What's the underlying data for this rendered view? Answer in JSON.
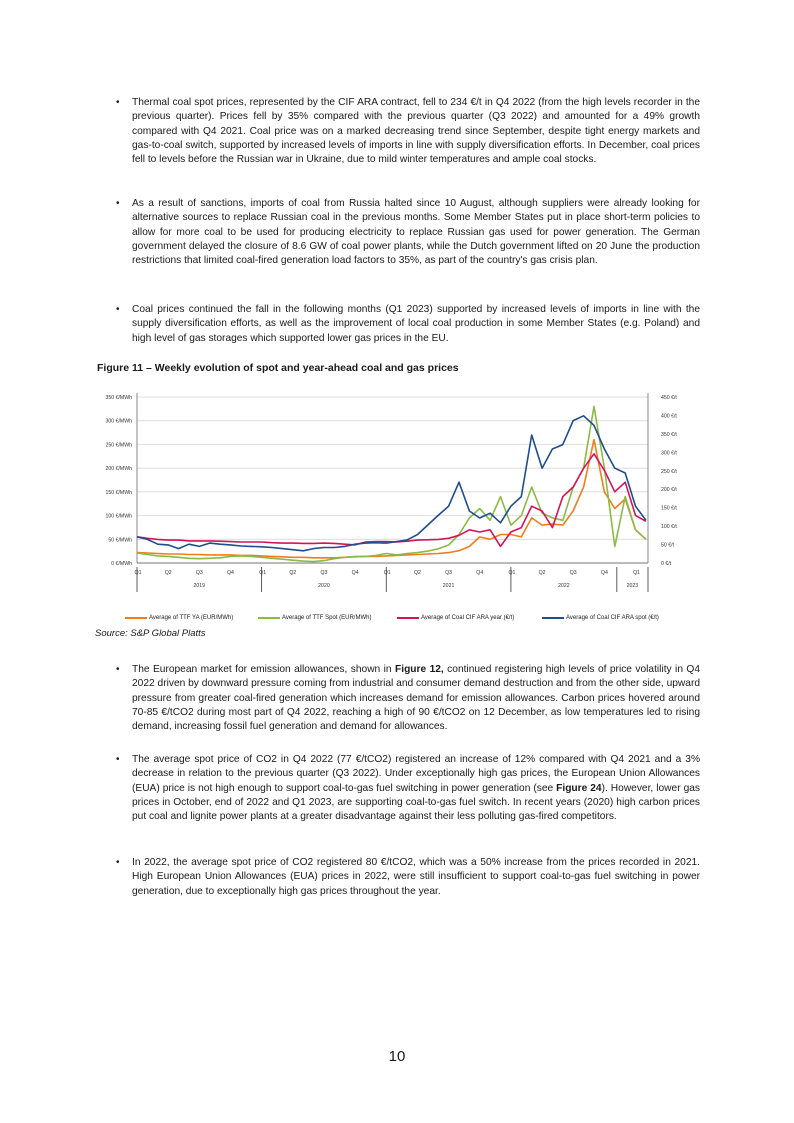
{
  "paragraphs": [
    {
      "text": "Thermal coal spot prices, represented by the CIF ARA contract, fell to 234 €/t in Q4 2022 (from the high levels recorder in the previous quarter). Prices fell by 35% compared with the previous quarter (Q3 2022) and amounted for a 49% growth compared with Q4 2021. Coal price was on a marked decreasing trend since September, despite tight energy markets and gas-to-coal switch, supported by increased levels of imports in line with supply diversification efforts. In December, coal prices fell to levels before the Russian war in Ukraine, due to mild winter temperatures and ample coal stocks."
    },
    {
      "text": "As a result of sanctions, imports of coal from Russia halted since 10 August, although suppliers were already looking for alternative sources to replace Russian coal in the previous months. Some Member States put in place short-term policies to allow for more coal to be used for producing electricity to replace Russian gas used for power generation. The German government delayed the closure of 8.6 GW of coal power plants, while the Dutch government lifted on 20 June the production restrictions that limited coal-fired generation load factors to 35%, as part of the country's gas crisis plan."
    },
    {
      "text": "Coal prices continued the fall in the following months (Q1 2023) supported by increased levels of imports in line with the supply diversification efforts, as well as the improvement of local coal production in some Member States (e.g. Poland) and high level of gas storages which supported lower gas prices in the EU."
    }
  ],
  "figure_title": "Figure 11 – Weekly evolution of spot and year-ahead coal and gas prices",
  "source": "Source: S&P Global Platts",
  "paragraphs2": [
    {
      "pre": "The European market for emission allowances, shown in ",
      "bold": "Figure 12,",
      "post": " continued registering high levels of price volatility in Q4 2022 driven by downward pressure coming from industrial and consumer demand destruction and from the other side, upward pressure from greater coal-fired generation which increases demand for emission allowances. Carbon prices hovered around 70-85 €/tCO2 during most part of Q4 2022, reaching a high of 90 €/tCO2 on 12 December, as low temperatures led to rising demand, increasing fossil fuel generation and demand for allowances."
    },
    {
      "pre": "The average spot price of CO2 in Q4 2022 (77 €/tCO2) registered an increase of 12% compared with Q4 2021 and a 3% decrease in relation to the previous quarter (Q3 2022). Under exceptionally high gas prices, the European Union Allowances (EUA) price is not high enough to support coal-to-gas fuel switching in power generation (see ",
      "bold": "Figure 24",
      "post": "). However, lower gas prices in October, end of 2022 and Q1 2023, are supporting coal-to-gas fuel switch. In recent years (2020) high carbon prices put coal and lignite power plants at a greater disadvantage against their less polluting gas-fired competitors."
    },
    {
      "pre": "In 2022, the average spot price of CO2 registered 80 €/tCO2, which was a 50% increase from the prices recorded in 2021.  High European Union Allowances (EUA) prices in 2022, were still insufficient to support coal-to-gas fuel switching in power generation, due to exceptionally high gas prices throughout the year.",
      "bold": "",
      "post": ""
    }
  ],
  "page_number": "10",
  "chart_data": {
    "type": "line",
    "title": "Figure 11 – Weekly evolution of spot and year-ahead coal and gas prices",
    "x_start": "2019-01",
    "x_step": "month (approx., read from weekly chart)",
    "left_axis": {
      "unit": "€/MWh",
      "ylim": [
        0,
        350
      ],
      "ticks": [
        "0 €/MWh",
        "50 €/MWh",
        "100 €/MWh",
        "150 €/MWh",
        "200 €/MWh",
        "250 €/MWh",
        "300 €/MWh",
        "350 €/MWh"
      ]
    },
    "right_axis": {
      "unit": "€/t",
      "ylim": [
        0,
        450
      ],
      "ticks": [
        "0 €/t",
        "50 €/t",
        "100 €/t",
        "150 €/t",
        "200 €/t",
        "250 €/t",
        "300 €/t",
        "350 €/t",
        "400 €/t",
        "450 €/t"
      ]
    },
    "quarters": [
      "Q1",
      "Q2",
      "Q3",
      "Q4",
      "Q1",
      "Q2",
      "Q3",
      "Q4",
      "Q1",
      "Q2",
      "Q3",
      "Q4",
      "Q1",
      "Q2",
      "Q3",
      "Q4",
      "Q1"
    ],
    "years": [
      "2019",
      "2020",
      "2021",
      "2022",
      "2023"
    ],
    "grid": true,
    "legend_position": "bottom",
    "series": [
      {
        "name": "Average of TTF YA (EUR/MWh)",
        "axis": "left",
        "color": "#f07d1a",
        "values": [
          22,
          21,
          20,
          19,
          19,
          18,
          18,
          17,
          17,
          17,
          16,
          16,
          15,
          14,
          13,
          12,
          12,
          11,
          11,
          11,
          12,
          13,
          14,
          14,
          15,
          16,
          17,
          18,
          19,
          20,
          22,
          26,
          35,
          55,
          50,
          60,
          60,
          55,
          95,
          80,
          82,
          80,
          110,
          160,
          260,
          150,
          115,
          135,
          70,
          50
        ]
      },
      {
        "name": "Average of TTF Spot (EUR/MWh)",
        "axis": "left",
        "color": "#8cbb45",
        "values": [
          21,
          18,
          15,
          14,
          12,
          10,
          9,
          10,
          11,
          14,
          15,
          14,
          12,
          10,
          8,
          6,
          4,
          3,
          5,
          9,
          12,
          14,
          14,
          16,
          20,
          17,
          20,
          22,
          25,
          30,
          38,
          60,
          95,
          115,
          90,
          140,
          80,
          100,
          160,
          105,
          95,
          90,
          160,
          200,
          330,
          200,
          35,
          140,
          70,
          50
        ]
      },
      {
        "name": "Average of Coal CIF ARA year (€/t)",
        "axis": "right",
        "color": "#d4145a",
        "values": [
          71,
          67,
          64,
          62,
          62,
          60,
          60,
          60,
          59,
          58,
          57,
          57,
          57,
          55,
          54,
          54,
          53,
          53,
          54,
          53,
          51,
          49,
          57,
          58,
          58,
          57,
          59,
          62,
          63,
          64,
          67,
          75,
          90,
          84,
          90,
          45,
          84,
          96,
          154,
          141,
          96,
          180,
          206,
          257,
          296,
          251,
          193,
          219,
          129,
          113
        ]
      },
      {
        "name": "Average of Coal CIF ARA spot (€/t)",
        "axis": "right",
        "color": "#1f4e8c",
        "values": [
          71,
          64,
          51,
          49,
          39,
          51,
          45,
          54,
          51,
          49,
          46,
          45,
          44,
          42,
          39,
          36,
          33,
          39,
          42,
          42,
          45,
          51,
          54,
          55,
          54,
          58,
          62,
          77,
          103,
          129,
          154,
          219,
          141,
          122,
          135,
          109,
          154,
          180,
          347,
          257,
          309,
          321,
          386,
          399,
          373,
          309,
          257,
          244,
          154,
          116
        ]
      }
    ]
  }
}
